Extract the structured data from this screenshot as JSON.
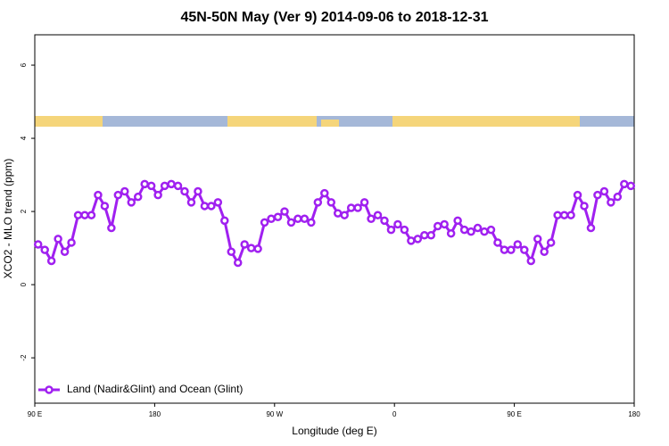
{
  "chart_data": {
    "type": "line",
    "title": "45N-50N May (Ver 9)   2014-09-06 to 2018-12-31",
    "x_label": "Longitude (deg E)",
    "y_label": "XCO2 - MLO trend (ppm)",
    "xlim": [
      90,
      540
    ],
    "ylim": [
      -3.24,
      6.83
    ],
    "xticks": [
      {
        "value": 90,
        "label": "90 E"
      },
      180,
      {
        "value": 270,
        "label": "90 W"
      },
      {
        "value": 360,
        "label": "0"
      },
      {
        "value": 450,
        "label": "90 E"
      },
      {
        "value": 540,
        "label": "180"
      }
    ],
    "yticks": [
      -2,
      0,
      2,
      4,
      6
    ],
    "legend": "bottom-left",
    "x": [
      92.5,
      97.5,
      102.5,
      107.5,
      112.5,
      117.5,
      122.5,
      127.5,
      132.5,
      137.5,
      142.5,
      147.5,
      152.5,
      157.5,
      162.5,
      167.5,
      172.5,
      177.5,
      182.5,
      187.5,
      192.5,
      197.5,
      202.5,
      207.5,
      212.5,
      217.5,
      222.5,
      227.5,
      232.5,
      237.5,
      242.5,
      247.5,
      252.5,
      257.5,
      262.5,
      267.5,
      272.5,
      277.5,
      282.5,
      287.5,
      292.5,
      297.5,
      302.5,
      307.5,
      312.5,
      317.5,
      322.5,
      327.5,
      332.5,
      337.5,
      342.5,
      347.5,
      352.5,
      357.5,
      362.5,
      367.5,
      372.5,
      377.5,
      382.5,
      387.5,
      392.5,
      397.5,
      402.5,
      407.5,
      412.5,
      417.5,
      422.5,
      427.5,
      432.5,
      437.5,
      442.5,
      447.5,
      452.5,
      457.5,
      462.5,
      467.5,
      472.5,
      477.5,
      482.5,
      487.5,
      492.5,
      497.5,
      502.5,
      507.5,
      512.5,
      517.5,
      522.5,
      527.5,
      532.5,
      537.5
    ],
    "series": [
      {
        "name": "Land (Nadir&Glint) and Ocean (Glint)",
        "color": "#a020f0",
        "values": [
          1.1,
          0.95,
          0.65,
          1.25,
          0.9,
          1.15,
          1.9,
          1.9,
          1.9,
          2.45,
          2.15,
          1.55,
          2.45,
          2.55,
          2.25,
          2.4,
          2.75,
          2.7,
          2.45,
          2.7,
          2.75,
          2.7,
          2.55,
          2.25,
          2.55,
          2.15,
          2.15,
          2.25,
          1.75,
          0.9,
          0.6,
          1.1,
          1.0,
          0.98,
          1.7,
          1.8,
          1.85,
          2.0,
          1.7,
          1.8,
          1.8,
          1.7,
          2.25,
          2.5,
          2.25,
          1.95,
          1.9,
          2.1,
          2.1,
          2.25,
          1.8,
          1.9,
          1.75,
          1.5,
          1.65,
          1.5,
          1.2,
          1.25,
          1.35,
          1.35,
          1.6,
          1.65,
          1.4,
          1.75,
          1.5,
          1.45,
          1.55,
          1.45,
          1.5,
          1.15,
          0.95,
          0.95,
          1.1,
          0.95,
          0.65,
          1.25,
          0.9,
          1.15,
          1.9,
          1.9,
          1.9,
          2.45,
          2.15,
          1.55,
          2.45,
          2.55,
          2.25,
          2.4,
          2.75,
          2.7
        ]
      }
    ]
  }
}
